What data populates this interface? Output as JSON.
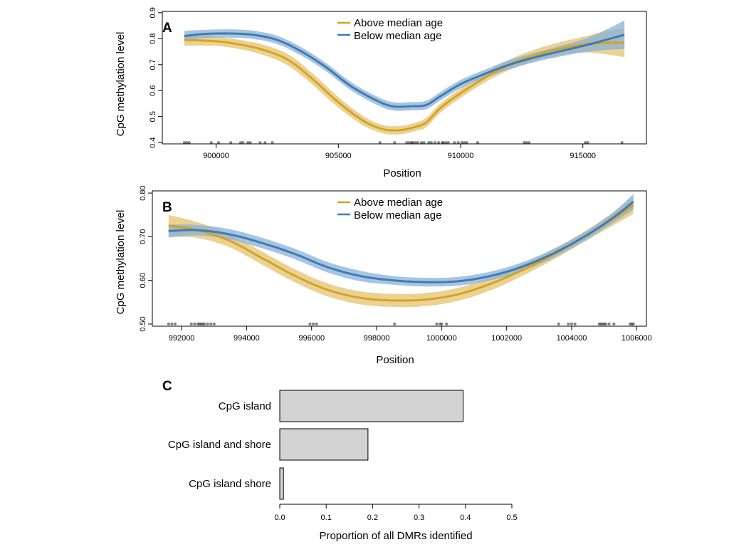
{
  "panels": {
    "a": {
      "letter": "A"
    },
    "b": {
      "letter": "B"
    },
    "c": {
      "letter": "C"
    }
  },
  "colors": {
    "above": "#D4A020",
    "above_band": "#E4C36E",
    "below": "#3A78B0",
    "below_band": "#8AB1D8",
    "overlap": "#7F9F8E",
    "bar_fill": "#D3D3D3",
    "rug": "#333333"
  },
  "chart_data": [
    {
      "id": "a",
      "type": "line",
      "xlabel": "Position",
      "ylabel": "CpG methylation level",
      "xlim": [
        897800,
        917600
      ],
      "ylim": [
        0.395,
        0.905
      ],
      "xticks": [
        900000,
        905000,
        910000,
        915000
      ],
      "xtick_labels": [
        "900000",
        "905000",
        "910000",
        "915000"
      ],
      "yticks": [
        0.4,
        0.5,
        0.6,
        0.7,
        0.8,
        0.9
      ],
      "ytick_labels": [
        "0.4",
        "0.5",
        "0.6",
        "0.7",
        "0.8",
        "0.9"
      ],
      "legend": {
        "position": "top-center",
        "entries": [
          "Above median age",
          "Below median age"
        ]
      },
      "series": [
        {
          "name": "Above median age",
          "x": [
            898700,
            900000,
            901000,
            902000,
            903000,
            904000,
            905000,
            906000,
            906700,
            907200,
            907700,
            908200,
            908600,
            909200,
            910000,
            911000,
            912000,
            913000,
            914000,
            915000,
            916000,
            916700
          ],
          "y": [
            0.795,
            0.79,
            0.777,
            0.755,
            0.715,
            0.64,
            0.555,
            0.485,
            0.455,
            0.447,
            0.45,
            0.462,
            0.478,
            0.535,
            0.59,
            0.65,
            0.7,
            0.735,
            0.76,
            0.777,
            0.784,
            0.784
          ],
          "band": [
            0.022,
            0.018,
            0.018,
            0.02,
            0.022,
            0.022,
            0.02,
            0.018,
            0.016,
            0.016,
            0.016,
            0.016,
            0.018,
            0.018,
            0.018,
            0.018,
            0.02,
            0.022,
            0.025,
            0.03,
            0.045,
            0.055
          ]
        },
        {
          "name": "Below median age",
          "x": [
            898700,
            899500,
            900500,
            901500,
            902500,
            903500,
            904500,
            905500,
            906500,
            907200,
            908000,
            908600,
            909200,
            910000,
            911000,
            912000,
            913000,
            914000,
            915000,
            916000,
            916700
          ],
          "y": [
            0.81,
            0.818,
            0.82,
            0.815,
            0.795,
            0.75,
            0.69,
            0.618,
            0.565,
            0.54,
            0.54,
            0.545,
            0.58,
            0.625,
            0.665,
            0.7,
            0.727,
            0.75,
            0.772,
            0.797,
            0.815
          ],
          "band": [
            0.02,
            0.016,
            0.016,
            0.016,
            0.016,
            0.016,
            0.016,
            0.016,
            0.016,
            0.016,
            0.016,
            0.016,
            0.016,
            0.016,
            0.016,
            0.018,
            0.018,
            0.02,
            0.025,
            0.04,
            0.055
          ]
        }
      ],
      "rug_y": 0.4,
      "rug_x": [
        898700,
        898800,
        898900,
        899800,
        900100,
        900600,
        901000,
        901100,
        901300,
        901400,
        901800,
        902000,
        902300,
        906700,
        907300,
        907800,
        907900,
        908000,
        908050,
        908150,
        908250,
        908400,
        908500,
        908700,
        908800,
        908950,
        909100,
        909250,
        909300,
        909400,
        909500,
        909750,
        909900,
        910050,
        910150,
        910250,
        910700,
        912600,
        912700,
        912800,
        915100,
        915200,
        916600
      ]
    },
    {
      "id": "b",
      "type": "line",
      "xlabel": "Position",
      "ylabel": "CpG methylation level",
      "xlim": [
        991100,
        1006300
      ],
      "ylim": [
        0.495,
        0.805
      ],
      "xticks": [
        992000,
        994000,
        996000,
        998000,
        1000000,
        1002000,
        1004000,
        1006000
      ],
      "xtick_labels": [
        "992000",
        "994000",
        "996000",
        "998000",
        "1000000",
        "1002000",
        "1004000",
        "1006000"
      ],
      "yticks": [
        0.5,
        0.6,
        0.7,
        0.8
      ],
      "ytick_labels": [
        "0.50",
        "0.60",
        "0.70",
        "0.80"
      ],
      "legend": {
        "position": "top-center",
        "entries": [
          "Above median age",
          "Below median age"
        ]
      },
      "series": [
        {
          "name": "Above median age",
          "x": [
            991600,
            992500,
            993500,
            994500,
            995500,
            996500,
            997500,
            998500,
            999500,
            1000500,
            1001500,
            1002500,
            1003500,
            1004500,
            1005300,
            1005900
          ],
          "y": [
            0.725,
            0.715,
            0.69,
            0.65,
            0.61,
            0.578,
            0.56,
            0.554,
            0.556,
            0.568,
            0.592,
            0.624,
            0.662,
            0.705,
            0.742,
            0.772
          ],
          "band": [
            0.025,
            0.018,
            0.015,
            0.015,
            0.015,
            0.015,
            0.015,
            0.015,
            0.015,
            0.015,
            0.015,
            0.013,
            0.012,
            0.012,
            0.015,
            0.02
          ]
        },
        {
          "name": "Below median age",
          "x": [
            991600,
            992500,
            993500,
            994500,
            995500,
            996500,
            997500,
            998500,
            999500,
            1000500,
            1001500,
            1002500,
            1003500,
            1004500,
            1005300,
            1005900
          ],
          "y": [
            0.713,
            0.715,
            0.705,
            0.685,
            0.66,
            0.63,
            0.61,
            0.6,
            0.596,
            0.598,
            0.61,
            0.632,
            0.664,
            0.705,
            0.745,
            0.78
          ],
          "band": [
            0.015,
            0.012,
            0.012,
            0.012,
            0.012,
            0.012,
            0.012,
            0.01,
            0.01,
            0.01,
            0.01,
            0.01,
            0.01,
            0.01,
            0.012,
            0.018
          ]
        }
      ],
      "rug_y": 0.5,
      "rug_x": [
        991600,
        991700,
        991800,
        992300,
        992400,
        992500,
        992550,
        992600,
        992650,
        992700,
        992800,
        992900,
        993000,
        995950,
        996050,
        996150,
        998550,
        999850,
        999950,
        1000000,
        1000150,
        1003600,
        1003900,
        1004000,
        1004100,
        1004850,
        1004900,
        1004950,
        1005000,
        1005050,
        1005150,
        1005300,
        1005800,
        1005850,
        1005900
      ]
    },
    {
      "id": "c",
      "type": "bar",
      "orientation": "horizontal",
      "categories": [
        "CpG island",
        "CpG island and shore",
        "CpG island shore"
      ],
      "values": [
        0.395,
        0.19,
        0.008
      ],
      "xlabel": "Proportion of all DMRs identified",
      "xlim": [
        0,
        0.5
      ],
      "xticks": [
        0.0,
        0.1,
        0.2,
        0.3,
        0.4,
        0.5
      ],
      "xtick_labels": [
        "0.0",
        "0.1",
        "0.2",
        "0.3",
        "0.4",
        "0.5"
      ]
    }
  ]
}
